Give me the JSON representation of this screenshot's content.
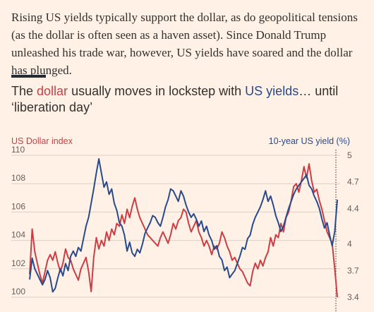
{
  "article": {
    "paragraph": "Rising US yields typically support the dollar, as do geopolitical tensions (as the dollar is often seen as a haven asset). Since Donald Trump unleashed his trade war, however, US yields have soared and the dollar has plunged."
  },
  "chart_headline": {
    "part1": "The ",
    "dollar": "dollar",
    "part2": " usually moves in lockstep with ",
    "yields": "US yields",
    "part3": "… until ‘liberation day’"
  },
  "colors": {
    "background": "#fff1e5",
    "dollar": "#cc3d44",
    "yield": "#29498d",
    "grid": "#d9cfc6"
  },
  "chart_data": {
    "type": "line",
    "left_axis_label": "US Dollar index",
    "right_axis_label": "10-year US yield (%)",
    "left_ticks": [
      "110",
      "108",
      "106",
      "104",
      "102",
      "100"
    ],
    "right_ticks": [
      "5",
      "4.7",
      "4.4",
      "4",
      "3.7",
      "3.4"
    ],
    "left_ylim": [
      100,
      110
    ],
    "right_ylim": [
      3.4,
      5.0
    ],
    "grid": true,
    "series": [
      {
        "name": "dollar",
        "axis": "left",
        "color": "#cc3d44",
        "values": [
          101.6,
          104.8,
          103.2,
          102.4,
          101.6,
          101.0,
          101.8,
          102.6,
          103.0,
          102.6,
          103.2,
          102.4,
          101.8,
          102.4,
          103.4,
          102.8,
          102.6,
          102.0,
          101.6,
          101.2,
          102.0,
          102.4,
          102.8,
          101.8,
          100.4,
          102.8,
          104.2,
          103.4,
          104.0,
          103.6,
          104.6,
          104.0,
          104.8,
          104.4,
          105.2,
          105.0,
          105.8,
          105.2,
          106.2,
          105.6,
          106.4,
          107.0,
          106.2,
          105.6,
          105.2,
          104.8,
          104.4,
          104.2,
          104.0,
          103.8,
          103.6,
          104.2,
          104.6,
          104.2,
          103.8,
          104.4,
          105.2,
          104.8,
          105.4,
          105.6,
          106.2,
          106.0,
          105.2,
          104.6,
          105.0,
          105.4,
          104.6,
          104.2,
          103.6,
          104.0,
          103.6,
          103.0,
          103.6,
          103.4,
          103.8,
          104.6,
          104.2,
          103.6,
          103.2,
          102.6,
          102.8,
          102.4,
          102.0,
          101.8,
          101.4,
          101.0,
          100.8,
          101.8,
          102.4,
          102.0,
          102.6,
          102.2,
          102.8,
          103.2,
          104.2,
          103.6,
          104.4,
          104.2,
          105.2,
          104.6,
          105.6,
          106.0,
          106.8,
          107.8,
          108.0,
          107.4,
          108.2,
          109.2,
          108.4,
          109.4,
          108.2,
          107.4,
          107.6,
          106.8,
          106.2,
          105.4,
          104.6,
          104.2,
          103.8,
          102.0,
          100.0
        ]
      },
      {
        "name": "yields",
        "axis": "right",
        "color": "#29498d",
        "values": [
          3.6,
          3.84,
          3.72,
          3.66,
          3.6,
          3.54,
          3.6,
          3.7,
          3.62,
          3.46,
          3.5,
          3.62,
          3.72,
          3.64,
          3.78,
          3.7,
          3.86,
          3.92,
          3.86,
          3.96,
          3.92,
          4.06,
          4.2,
          4.3,
          4.46,
          4.62,
          4.8,
          4.96,
          4.8,
          4.64,
          4.7,
          4.56,
          4.62,
          4.46,
          4.38,
          4.24,
          4.2,
          4.1,
          3.92,
          4.02,
          3.9,
          3.86,
          3.94,
          3.9,
          4.0,
          4.12,
          4.18,
          4.24,
          4.32,
          4.3,
          4.24,
          4.2,
          4.3,
          4.42,
          4.5,
          4.62,
          4.6,
          4.54,
          4.48,
          4.6,
          4.54,
          4.44,
          4.36,
          4.3,
          4.34,
          4.28,
          4.2,
          4.26,
          4.14,
          4.2,
          4.1,
          4.04,
          3.94,
          3.98,
          3.86,
          3.82,
          3.7,
          3.74,
          3.62,
          3.66,
          3.7,
          3.78,
          3.86,
          3.96,
          3.94,
          4.06,
          4.1,
          4.22,
          4.3,
          4.36,
          4.42,
          4.5,
          4.6,
          4.48,
          4.54,
          4.44,
          4.32,
          4.24,
          4.14,
          4.2,
          4.3,
          4.4,
          4.48,
          4.56,
          4.62,
          4.66,
          4.7,
          4.74,
          4.78,
          4.66,
          4.62,
          4.54,
          4.48,
          4.4,
          4.28,
          4.18,
          4.24,
          4.1,
          3.98,
          4.14,
          4.5
        ]
      }
    ]
  }
}
